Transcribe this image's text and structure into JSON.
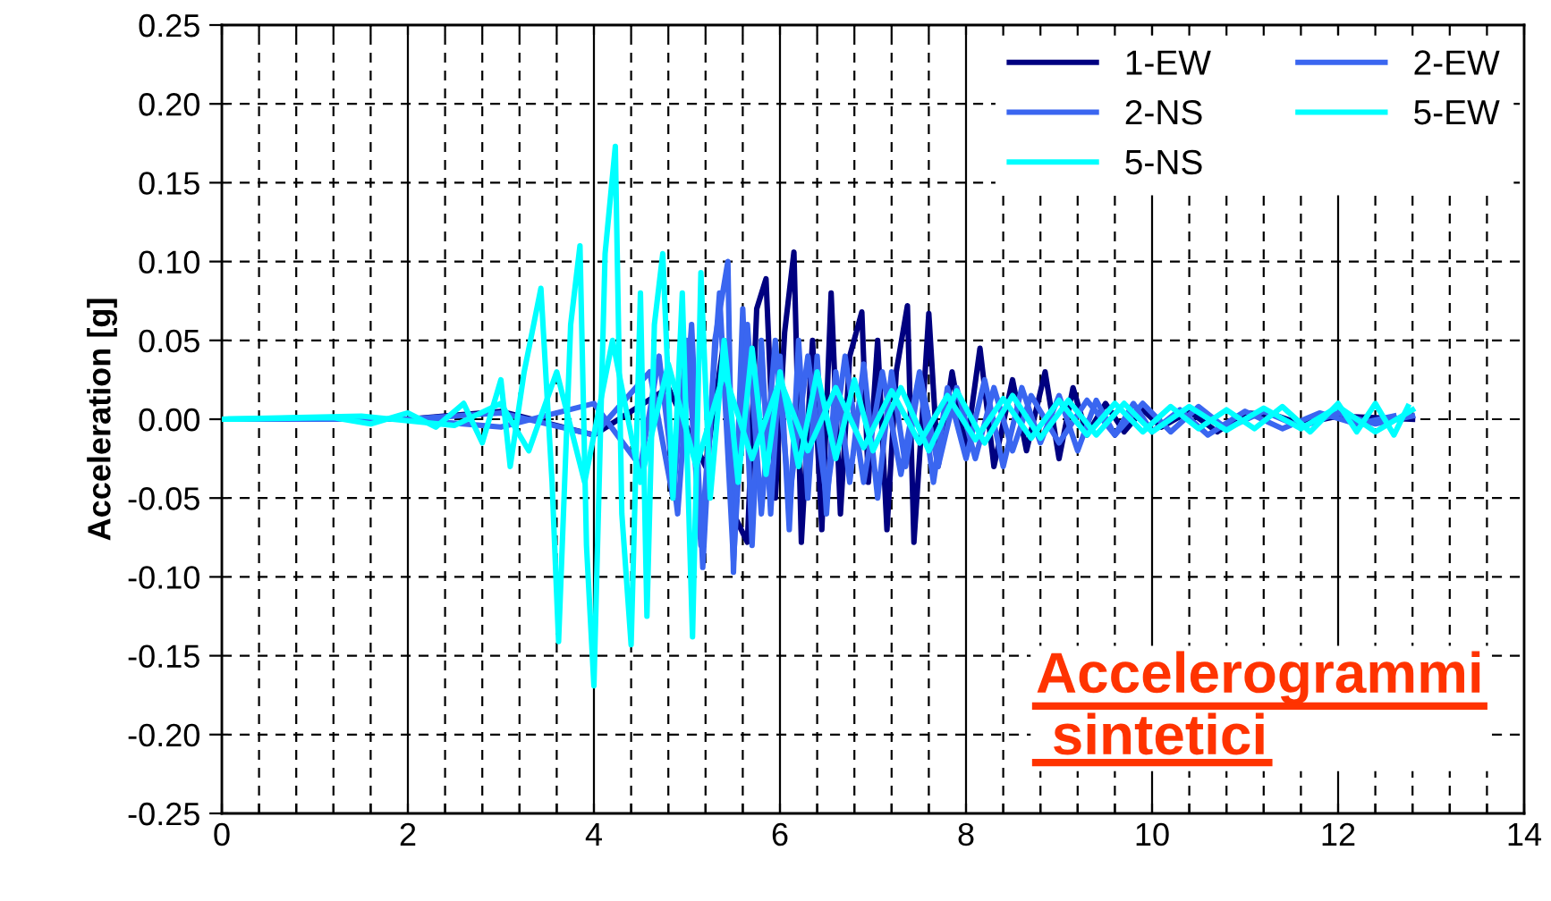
{
  "chart_data": {
    "type": "line",
    "ylabel": "Acceleration [g]",
    "xlim": [
      0,
      14
    ],
    "xticks": [
      0,
      {
        "value": 0.4,
        "label": null
      },
      {
        "value": 0.8,
        "label": null
      },
      {
        "value": 1.2,
        "label": null
      },
      {
        "value": 1.6,
        "label": null
      },
      2,
      {
        "value": 2.4,
        "label": null
      },
      {
        "value": 2.8,
        "label": null
      },
      {
        "value": 3.2,
        "label": null
      },
      {
        "value": 3.6,
        "label": null
      },
      4,
      {
        "value": 4.4,
        "label": null
      },
      {
        "value": 4.8,
        "label": null
      },
      {
        "value": 5.2,
        "label": null
      },
      {
        "value": 5.6,
        "label": null
      },
      6,
      {
        "value": 6.4,
        "label": null
      },
      {
        "value": 6.8,
        "label": null
      },
      {
        "value": 7.2,
        "label": null
      },
      {
        "value": 7.6,
        "label": null
      },
      8,
      {
        "value": 8.4,
        "label": null
      },
      {
        "value": 8.8,
        "label": null
      },
      {
        "value": 9.2,
        "label": null
      },
      {
        "value": 9.6,
        "label": null
      },
      10,
      {
        "value": 10.4,
        "label": null
      },
      {
        "value": 10.8,
        "label": null
      },
      {
        "value": 11.2,
        "label": null
      },
      {
        "value": 11.6,
        "label": null
      },
      12,
      {
        "value": 12.4,
        "label": null
      },
      {
        "value": 12.8,
        "label": null
      },
      {
        "value": 13.2,
        "label": null
      },
      {
        "value": 13.6,
        "label": null
      },
      14
    ],
    "ylim": [
      -0.25,
      0.25
    ],
    "yticks": [
      {
        "value": -0.25,
        "label": "-0.25"
      },
      {
        "value": -0.2,
        "label": "-0.20"
      },
      {
        "value": -0.15,
        "label": "-0.15"
      },
      {
        "value": -0.1,
        "label": "-0.10"
      },
      {
        "value": -0.05,
        "label": "-0.05"
      },
      {
        "value": 0,
        "label": "0.00"
      },
      {
        "value": 0.05,
        "label": "0.05"
      },
      {
        "value": 0.1,
        "label": "0.10"
      },
      {
        "value": 0.15,
        "label": "0.15"
      },
      {
        "value": 0.2,
        "label": "0.20"
      },
      {
        "value": 0.25,
        "label": "0.25"
      }
    ],
    "grid": true,
    "legend": "top right",
    "marker": "none",
    "line_style": "solid",
    "annotations": [
      "Accelerogrammi\n sintetici"
    ],
    "series": [
      {
        "name": "1-EW",
        "color": "#000080",
        "x": [
          0,
          2,
          3,
          4,
          4.8,
          5.2,
          5.4,
          5.5,
          5.65,
          5.75,
          5.85,
          5.95,
          6.05,
          6.15,
          6.23,
          6.35,
          6.45,
          6.55,
          6.65,
          6.75,
          6.88,
          6.95,
          7.05,
          7.15,
          7.25,
          7.37,
          7.44,
          7.55,
          7.6,
          7.7,
          7.85,
          8.0,
          8.15,
          8.3,
          8.5,
          8.65,
          8.85,
          9.0,
          9.15,
          9.3,
          9.5,
          9.7,
          9.9,
          10.1,
          10.4,
          10.7,
          11.0,
          11.3,
          11.6,
          12.0,
          12.4,
          12.8
        ],
        "values": [
          0,
          0,
          0.005,
          -0.01,
          0.02,
          -0.03,
          0.05,
          -0.06,
          -0.078,
          0.07,
          0.089,
          -0.05,
          0.055,
          0.106,
          -0.078,
          0.05,
          -0.07,
          0.08,
          -0.06,
          0.04,
          0.068,
          -0.04,
          0.05,
          -0.07,
          0.03,
          0.072,
          -0.078,
          0.02,
          0.067,
          -0.03,
          0.03,
          -0.02,
          0.045,
          -0.03,
          0.025,
          -0.02,
          0.03,
          -0.025,
          0.02,
          -0.01,
          0.01,
          -0.008,
          0.006,
          -0.005,
          0.005,
          -0.008,
          0.004,
          0.003,
          -0.003,
          0.002,
          0.001,
          0
        ]
      },
      {
        "name": "2-EW",
        "color": "#3a66f0",
        "x": [
          0,
          2,
          3,
          4,
          4.5,
          4.7,
          4.9,
          5.05,
          5.17,
          5.3,
          5.44,
          5.5,
          5.6,
          5.7,
          5.8,
          5.9,
          6.0,
          6.1,
          6.2,
          6.3,
          6.4,
          6.5,
          6.6,
          6.75,
          6.9,
          7.05,
          7.2,
          7.35,
          7.5,
          7.65,
          7.8,
          8.0,
          8.2,
          8.4,
          8.6,
          8.8,
          9.0,
          9.2,
          9.4,
          9.6,
          9.8,
          10.0,
          10.3,
          10.6,
          11.0,
          11.4,
          11.8,
          12.2,
          12.6
        ],
        "values": [
          0,
          0,
          -0.005,
          0.01,
          -0.03,
          0.04,
          -0.06,
          0.06,
          -0.094,
          0.05,
          0.1,
          -0.097,
          0.07,
          -0.08,
          0.05,
          -0.06,
          0.04,
          -0.07,
          0.05,
          -0.05,
          0.04,
          -0.06,
          0.03,
          -0.04,
          0.035,
          -0.05,
          0.03,
          -0.03,
          0.025,
          -0.04,
          0.02,
          -0.025,
          0.025,
          -0.03,
          0.02,
          -0.015,
          0.015,
          -0.02,
          0.012,
          -0.01,
          0.01,
          -0.008,
          0.006,
          -0.01,
          0.005,
          -0.006,
          0.004,
          -0.003,
          0.002
        ]
      },
      {
        "name": "2-NS",
        "color": "#3a66f0",
        "x": [
          0,
          2,
          3,
          4,
          4.6,
          4.85,
          5.0,
          5.15,
          5.35,
          5.5,
          5.65,
          5.8,
          5.95,
          6.1,
          6.3,
          6.5,
          6.7,
          6.9,
          7.1,
          7.3,
          7.5,
          7.7,
          7.9,
          8.1,
          8.3,
          8.5,
          8.7,
          9.0,
          9.3,
          9.6,
          9.9,
          10.2,
          10.5,
          10.8,
          11.2,
          11.6,
          12.0,
          12.4,
          12.8
        ],
        "values": [
          0,
          0,
          0.004,
          -0.01,
          0.03,
          -0.05,
          0.05,
          -0.08,
          0.08,
          -0.09,
          0.06,
          -0.06,
          0.05,
          -0.05,
          0.04,
          -0.05,
          0.04,
          -0.04,
          0.03,
          -0.035,
          0.03,
          -0.03,
          0.02,
          -0.025,
          0.02,
          -0.02,
          0.015,
          -0.015,
          0.012,
          -0.01,
          0.01,
          -0.008,
          0.008,
          -0.006,
          0.005,
          -0.005,
          0.004,
          -0.003,
          0.002
        ]
      },
      {
        "name": "5-EW",
        "color": "#00ffff",
        "x": [
          0,
          1.5,
          2.5,
          3.0,
          3.3,
          3.6,
          3.9,
          4.2,
          4.5,
          4.8,
          5.1,
          5.4,
          5.7,
          6.0,
          6.3,
          6.6,
          6.9,
          7.2,
          7.5,
          7.8,
          8.1,
          8.4,
          8.7,
          9.0,
          9.3,
          9.6,
          9.9,
          10.2,
          10.5,
          10.8,
          11.1,
          11.4,
          11.7,
          12.0,
          12.2,
          12.4,
          12.6,
          12.75
        ],
        "values": [
          0,
          0.002,
          -0.004,
          0.01,
          -0.02,
          0.03,
          -0.04,
          0.05,
          -0.04,
          0.035,
          -0.03,
          0.03,
          -0.025,
          0.025,
          -0.02,
          0.02,
          -0.018,
          0.018,
          -0.015,
          0.015,
          -0.013,
          0.013,
          -0.012,
          0.012,
          -0.01,
          0.01,
          -0.008,
          0.008,
          -0.006,
          0.006,
          -0.006,
          0.008,
          -0.008,
          0.01,
          -0.008,
          0.01,
          -0.01,
          0.008
        ]
      },
      {
        "name": "5-NS",
        "color": "#00ffff",
        "x": [
          0,
          1.2,
          1.6,
          2.0,
          2.3,
          2.6,
          2.8,
          3.0,
          3.1,
          3.25,
          3.43,
          3.55,
          3.62,
          3.75,
          3.85,
          3.92,
          4.0,
          4.12,
          4.23,
          4.3,
          4.4,
          4.5,
          4.57,
          4.65,
          4.74,
          4.85,
          4.95,
          5.06,
          5.15,
          5.25,
          5.4,
          5.55,
          5.7,
          5.85,
          6.0,
          6.2,
          6.4,
          6.6,
          6.8,
          7.0,
          7.3,
          7.6,
          7.9,
          8.2,
          8.5,
          8.8,
          9.1,
          9.4,
          9.7,
          10.0,
          10.4,
          10.8,
          11.2,
          11.6,
          12.0,
          12.4,
          12.8
        ],
        "values": [
          0,
          0.001,
          -0.003,
          0.004,
          -0.005,
          0.01,
          -0.015,
          0.025,
          -0.03,
          0.03,
          0.083,
          -0.04,
          -0.141,
          0.06,
          0.11,
          -0.08,
          -0.169,
          0.105,
          0.173,
          -0.06,
          -0.143,
          0.08,
          -0.125,
          0.06,
          0.105,
          -0.05,
          0.08,
          -0.138,
          0.093,
          -0.05,
          0.05,
          -0.04,
          0.045,
          -0.035,
          0.03,
          -0.03,
          0.03,
          -0.025,
          0.025,
          -0.02,
          0.02,
          -0.02,
          0.018,
          -0.015,
          0.015,
          -0.012,
          0.012,
          -0.01,
          0.01,
          -0.008,
          0.008,
          -0.007,
          0.007,
          -0.006,
          0.008,
          -0.008,
          0.006
        ]
      }
    ]
  }
}
